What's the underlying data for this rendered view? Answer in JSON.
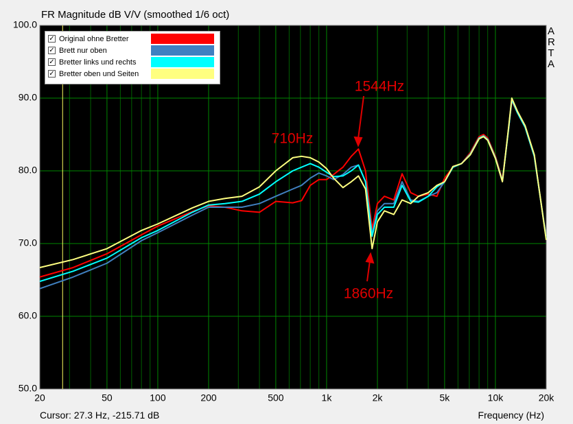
{
  "chart_data": {
    "type": "line",
    "title": "FR Magnitude dB V/V (smoothed 1/6 oct)",
    "x_label": "Frequency (Hz)",
    "side_label": "ARTA",
    "cursor": {
      "label": "Cursor: 27.3 Hz, -215.71 dB",
      "x": 27.3
    },
    "log_x": true,
    "grid": true,
    "legend": "top-left",
    "xlim": [
      20,
      20000
    ],
    "ylim": [
      50,
      100
    ],
    "xticks": [
      20,
      50,
      100,
      200,
      500,
      {
        "value": 1000,
        "label": "1k"
      },
      {
        "value": 2000,
        "label": "2k"
      },
      {
        "value": 5000,
        "label": "5k"
      },
      {
        "value": 10000,
        "label": "10k"
      },
      {
        "value": 20000,
        "label": "20k"
      }
    ],
    "yticks": [
      {
        "value": 50,
        "label": "50.0"
      },
      {
        "value": 60,
        "label": "60.0"
      },
      {
        "value": 70,
        "label": "70.0"
      },
      {
        "value": 80,
        "label": "80.0"
      },
      {
        "value": 90,
        "label": "90.0"
      },
      {
        "value": 100,
        "label": "100.0"
      }
    ],
    "annotations": [
      "710Hz",
      "1544Hz",
      "1860Hz"
    ],
    "x": [
      20,
      31.5,
      50,
      80,
      100,
      160,
      200,
      250,
      315,
      400,
      500,
      630,
      710,
      800,
      900,
      1000,
      1100,
      1250,
      1400,
      1544,
      1700,
      1860,
      2000,
      2200,
      2500,
      2800,
      3150,
      3500,
      4000,
      4500,
      5000,
      5600,
      6300,
      7100,
      8000,
      8500,
      9000,
      10000,
      11000,
      12000,
      12500,
      13500,
      15000,
      17000,
      20000
    ],
    "series": [
      {
        "name": "Original ohne Bretter",
        "color": "#ff0000",
        "values": [
          65.4,
          66.7,
          68.6,
          71.2,
          72.4,
          74.4,
          75.2,
          75,
          74.5,
          74.3,
          75.8,
          75.6,
          75.9,
          78,
          78.8,
          78.8,
          79.5,
          80.5,
          82,
          83,
          80,
          72,
          75.5,
          76.5,
          76,
          79.6,
          77,
          76.5,
          76.8,
          76.5,
          79,
          80.5,
          81,
          82.5,
          84.7,
          85,
          84.5,
          82,
          78.8,
          86,
          89.6,
          88,
          86,
          82,
          70.8
        ]
      },
      {
        "name": "Brett nur oben",
        "color": "#4080c0",
        "values": [
          63.8,
          65.4,
          67.3,
          70.4,
          71.5,
          73.9,
          75,
          75,
          75,
          75.5,
          76.5,
          77.5,
          78,
          79,
          79.7,
          79.3,
          78.8,
          79.5,
          80.5,
          80.8,
          78.5,
          71.3,
          74.5,
          75.5,
          75.5,
          78.5,
          76,
          75.8,
          76.5,
          77,
          78.5,
          80.5,
          81,
          82.3,
          84.5,
          84.8,
          84.3,
          81.8,
          78.6,
          86,
          89.8,
          88,
          86,
          82,
          70.7
        ]
      },
      {
        "name": "Bretter links und rechts",
        "color": "#00ffff",
        "values": [
          64.8,
          66.2,
          68,
          70.8,
          71.8,
          74.3,
          75.3,
          75.5,
          75.8,
          76.8,
          78.5,
          80,
          80.5,
          81,
          80.5,
          79.8,
          79.2,
          79.3,
          80,
          80.8,
          78.5,
          71,
          74,
          75,
          75,
          78,
          75.8,
          75.7,
          76.5,
          77.8,
          78.5,
          80.5,
          81,
          82.3,
          84.5,
          84.8,
          84.3,
          81.8,
          78.6,
          86,
          89.8,
          88,
          86,
          82,
          70.7
        ]
      },
      {
        "name": "Bretter oben und Seiten",
        "color": "#ffff80",
        "values": [
          66.7,
          67.8,
          69.3,
          71.8,
          72.7,
          74.9,
          75.8,
          76.2,
          76.5,
          77.8,
          80,
          81.8,
          82,
          81.8,
          81.2,
          80.3,
          79,
          77.7,
          78.5,
          79.3,
          77.5,
          69.3,
          73,
          74.5,
          74,
          76,
          75.5,
          76.5,
          77,
          78,
          78.5,
          80.6,
          81,
          82.2,
          84.4,
          84.7,
          84.2,
          81.7,
          78.5,
          86.2,
          90,
          88.2,
          86.2,
          82.2,
          70.5
        ]
      }
    ]
  }
}
